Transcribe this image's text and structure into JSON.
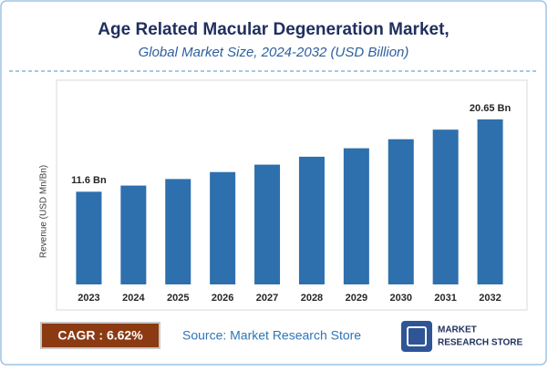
{
  "chart_data": {
    "type": "bar",
    "title": "Age Related Macular Degeneration Market,",
    "subtitle": "Global Market Size, 2024-2032 (USD Billion)",
    "y_axis_label": "Revenue (USD Mn/Bn)",
    "categories": [
      "2023",
      "2024",
      "2025",
      "2026",
      "2027",
      "2028",
      "2029",
      "2030",
      "2031",
      "2032"
    ],
    "values": [
      11.6,
      12.37,
      13.19,
      14.06,
      14.99,
      15.98,
      17.04,
      18.17,
      19.37,
      20.65
    ],
    "value_labels": [
      "11.6 Bn",
      null,
      null,
      null,
      null,
      null,
      null,
      null,
      null,
      "20.65 Bn"
    ],
    "color": "#2e6fad",
    "cagr_label": "CAGR : 6.62%",
    "source": "Source: Market Research Store",
    "logo": [
      "MARKET",
      "RESEARCH STORE"
    ]
  }
}
